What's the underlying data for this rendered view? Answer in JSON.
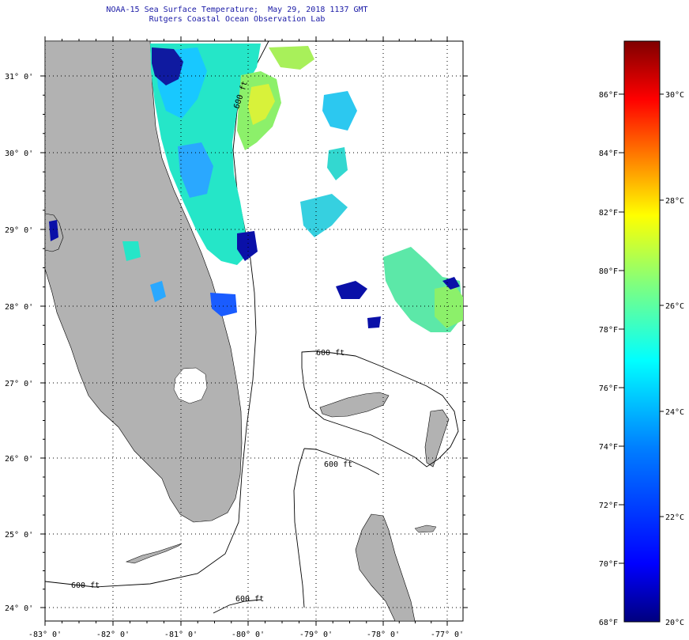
{
  "title": {
    "line1": "NOAA-15 Sea Surface Temperature;  May 29, 2018 1137 GMT",
    "line2": "Rutgers Coastal Ocean Observation Lab"
  },
  "map": {
    "lat_labels": [
      "31° 0'",
      "30° 0'",
      "29° 0'",
      "28° 0'",
      "27° 0'",
      "26° 0'",
      "25° 0'",
      "24° 0'"
    ],
    "lon_labels": [
      "-83° 0'",
      "-82° 0'",
      "-81° 0'",
      "-80° 0'",
      "-79° 0'",
      "-78° 0'",
      "-77° 0'"
    ],
    "contour_labels": [
      "600 ft",
      "600 ft",
      "600 ft",
      "600 ft",
      "600 ft"
    ],
    "land_color": "#b2b2b2",
    "ocean_color": "#ffffff"
  },
  "colorbar": {
    "fahrenheit_labels": [
      "86°F",
      "84°F",
      "82°F",
      "80°F",
      "78°F",
      "76°F",
      "74°F",
      "72°F",
      "70°F",
      "68°F"
    ],
    "celsius_labels": [
      "30°C",
      "28°C",
      "26°C",
      "24°C",
      "22°C",
      "20°C"
    ],
    "gradient_stops": [
      "#00007f",
      "#0000ff",
      "#007fff",
      "#00ffff",
      "#7fff7f",
      "#ffff00",
      "#ff7f00",
      "#ff0000",
      "#7f0000"
    ]
  }
}
